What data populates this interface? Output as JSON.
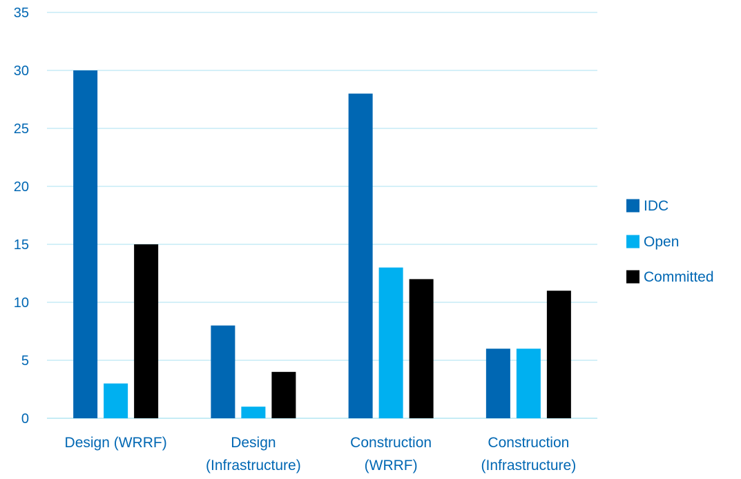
{
  "chart_data": {
    "type": "bar",
    "categories": [
      [
        "Design (WRRF)"
      ],
      [
        "Design",
        "(Infrastructure)"
      ],
      [
        "Construction",
        "(WRRF)"
      ],
      [
        "Construction",
        "(Infrastructure)"
      ]
    ],
    "series": [
      {
        "name": "IDC",
        "values": [
          30,
          8,
          28,
          6
        ],
        "color": "#0067B3"
      },
      {
        "name": "Open",
        "values": [
          3,
          1,
          13,
          6
        ],
        "color": "#00B0F0"
      },
      {
        "name": "Committed",
        "values": [
          15,
          4,
          12,
          11
        ],
        "color": "#000000"
      }
    ],
    "ylim": [
      0,
      35
    ],
    "yticks": [
      0,
      5,
      10,
      15,
      20,
      25,
      30,
      35
    ],
    "grid": true,
    "legend_position": "right",
    "colors": {
      "text": "#0067B3",
      "grid": "#C5ECF5",
      "axis": "#C5ECF5"
    }
  }
}
